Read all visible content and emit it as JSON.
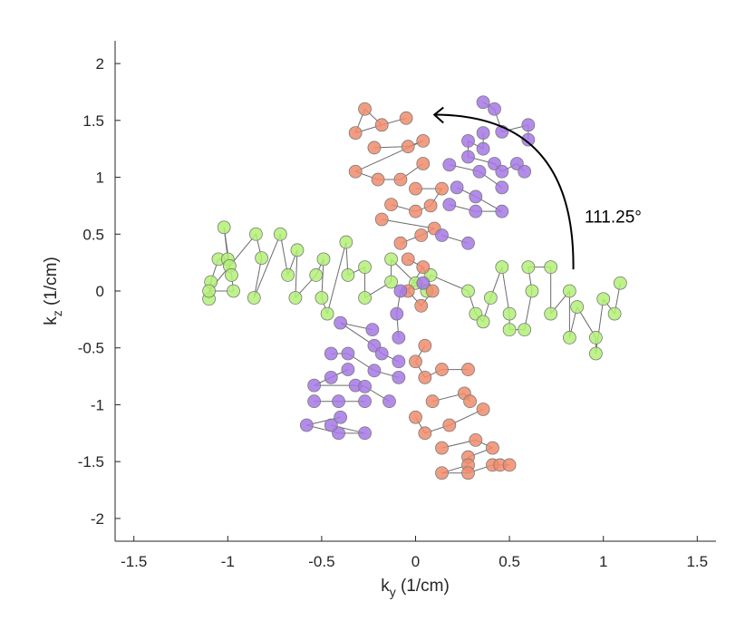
{
  "chart_data": {
    "type": "scatter",
    "xlabel": "k",
    "xlabel_sub": "y",
    "xlabel_unit": " (1/cm)",
    "ylabel": "k",
    "ylabel_sub": "z",
    "ylabel_unit": " (1/cm)",
    "xlim": [
      -1.6,
      1.6
    ],
    "ylim": [
      -2.2,
      2.2
    ],
    "xticks": [
      -1.5,
      -1,
      -0.5,
      0,
      0.5,
      1,
      1.5
    ],
    "xtick_labels": [
      "-1.5",
      "-1",
      "-0.5",
      "0",
      "0.5",
      "1",
      "1.5"
    ],
    "yticks": [
      2,
      1.5,
      1,
      0.5,
      0,
      -0.5,
      -1,
      -1.5,
      -2
    ],
    "ytick_labels": [
      "2",
      "1.5",
      "1",
      "0.5",
      "0",
      "-0.5",
      "-1",
      "-1.5",
      "-2"
    ],
    "grid": false,
    "annotation": {
      "text": "111.25°",
      "arrow_from": [
        0.84,
        0.19
      ],
      "arrow_to": [
        0.1,
        1.55
      ],
      "text_pos": [
        0.9,
        0.6
      ]
    },
    "series": [
      {
        "color": "#b3f075",
        "points": [
          [
            -1.1,
            -0.07
          ],
          [
            -1.09,
            0.08
          ],
          [
            -1.05,
            0.28
          ],
          [
            -1.0,
            0.28
          ],
          [
            -1.02,
            0.56
          ],
          [
            -0.99,
            0.22
          ],
          [
            -0.98,
            0.14
          ],
          [
            -0.97,
            0.0
          ],
          [
            -1.1,
            0.0
          ],
          [
            -0.85,
            0.5
          ],
          [
            -0.82,
            0.29
          ],
          [
            -0.86,
            -0.06
          ],
          [
            -0.72,
            0.5
          ],
          [
            -0.68,
            0.14
          ],
          [
            -0.63,
            0.36
          ],
          [
            -0.64,
            -0.06
          ],
          [
            -0.53,
            0.14
          ],
          [
            -0.49,
            0.28
          ],
          [
            -0.5,
            -0.06
          ],
          [
            -0.47,
            -0.2
          ],
          [
            -0.37,
            0.43
          ],
          [
            -0.36,
            0.14
          ],
          [
            -0.27,
            0.21
          ],
          [
            -0.27,
            -0.06
          ],
          [
            -0.13,
            0.08
          ],
          [
            -0.13,
            0.28
          ],
          [
            0.0,
            0.07
          ],
          [
            0.06,
            0.0
          ],
          [
            0.08,
            0.14
          ],
          [
            0.28,
            0.0
          ],
          [
            0.32,
            -0.2
          ],
          [
            0.36,
            -0.27
          ],
          [
            0.4,
            -0.06
          ],
          [
            0.46,
            0.21
          ],
          [
            0.5,
            -0.2
          ],
          [
            0.5,
            -0.34
          ],
          [
            0.58,
            -0.34
          ],
          [
            0.62,
            0.0
          ],
          [
            0.6,
            0.21
          ],
          [
            0.72,
            0.21
          ],
          [
            0.72,
            -0.2
          ],
          [
            0.82,
            0.0
          ],
          [
            0.82,
            -0.41
          ],
          [
            0.86,
            -0.14
          ],
          [
            0.96,
            -0.41
          ],
          [
            0.96,
            -0.55
          ],
          [
            1.0,
            -0.07
          ],
          [
            1.06,
            -0.2
          ],
          [
            1.09,
            0.07
          ]
        ],
        "links": [
          [
            0,
            1
          ],
          [
            1,
            2
          ],
          [
            2,
            3
          ],
          [
            3,
            4
          ],
          [
            4,
            5
          ],
          [
            5,
            6
          ],
          [
            6,
            7
          ],
          [
            7,
            8
          ],
          [
            8,
            9
          ],
          [
            9,
            10
          ],
          [
            10,
            11
          ],
          [
            11,
            12
          ],
          [
            12,
            13
          ],
          [
            13,
            14
          ],
          [
            14,
            15
          ],
          [
            15,
            16
          ],
          [
            16,
            17
          ],
          [
            17,
            18
          ],
          [
            18,
            19
          ],
          [
            19,
            20
          ],
          [
            20,
            21
          ],
          [
            21,
            22
          ],
          [
            22,
            23
          ],
          [
            23,
            24
          ],
          [
            24,
            25
          ],
          [
            25,
            26
          ],
          [
            26,
            27
          ],
          [
            27,
            28
          ],
          [
            28,
            29
          ],
          [
            29,
            30
          ],
          [
            30,
            31
          ],
          [
            31,
            32
          ],
          [
            32,
            33
          ],
          [
            33,
            34
          ],
          [
            34,
            35
          ],
          [
            35,
            36
          ],
          [
            36,
            37
          ],
          [
            37,
            38
          ],
          [
            38,
            39
          ],
          [
            39,
            40
          ],
          [
            40,
            41
          ],
          [
            41,
            42
          ],
          [
            42,
            43
          ],
          [
            43,
            44
          ],
          [
            44,
            45
          ],
          [
            45,
            46
          ],
          [
            46,
            47
          ],
          [
            47,
            48
          ]
        ]
      },
      {
        "color": "#f08c6c",
        "points": [
          [
            -0.27,
            1.6
          ],
          [
            -0.18,
            1.46
          ],
          [
            -0.05,
            1.52
          ],
          [
            -0.32,
            1.39
          ],
          [
            -0.22,
            1.26
          ],
          [
            -0.04,
            1.27
          ],
          [
            0.04,
            1.32
          ],
          [
            -0.32,
            1.05
          ],
          [
            -0.2,
            0.98
          ],
          [
            -0.08,
            0.98
          ],
          [
            0.04,
            1.12
          ],
          [
            0.0,
            0.9
          ],
          [
            0.14,
            0.9
          ],
          [
            -0.13,
            0.76
          ],
          [
            0.0,
            0.7
          ],
          [
            0.08,
            0.75
          ],
          [
            -0.18,
            0.63
          ],
          [
            0.1,
            0.55
          ],
          [
            -0.08,
            0.42
          ],
          [
            0.03,
            0.49
          ],
          [
            -0.04,
            0.28
          ],
          [
            0.04,
            0.21
          ],
          [
            -0.04,
            0.0
          ],
          [
            0.03,
            -0.13
          ],
          [
            0.09,
            0.0
          ],
          [
            0.05,
            -0.48
          ],
          [
            0.0,
            -0.62
          ],
          [
            0.05,
            -0.76
          ],
          [
            0.14,
            -0.69
          ],
          [
            0.28,
            -0.69
          ],
          [
            0.09,
            -0.97
          ],
          [
            0.26,
            -0.9
          ],
          [
            0.29,
            -0.97
          ],
          [
            0.0,
            -1.11
          ],
          [
            0.05,
            -1.25
          ],
          [
            0.18,
            -1.18
          ],
          [
            0.36,
            -1.04
          ],
          [
            0.14,
            -1.38
          ],
          [
            0.32,
            -1.31
          ],
          [
            0.41,
            -1.38
          ],
          [
            0.28,
            -1.46
          ],
          [
            0.28,
            -1.53
          ],
          [
            0.14,
            -1.6
          ],
          [
            0.28,
            -1.6
          ],
          [
            0.41,
            -1.53
          ],
          [
            0.45,
            -1.53
          ],
          [
            0.5,
            -1.53
          ]
        ],
        "links": [
          [
            0,
            1
          ],
          [
            1,
            2
          ],
          [
            0,
            3
          ],
          [
            3,
            1
          ],
          [
            4,
            5
          ],
          [
            5,
            6
          ],
          [
            7,
            8
          ],
          [
            8,
            9
          ],
          [
            9,
            10
          ],
          [
            7,
            6
          ],
          [
            11,
            12
          ],
          [
            13,
            14
          ],
          [
            14,
            15
          ],
          [
            15,
            12
          ],
          [
            16,
            17
          ],
          [
            18,
            19
          ],
          [
            19,
            17
          ],
          [
            20,
            21
          ],
          [
            21,
            22
          ],
          [
            22,
            23
          ],
          [
            23,
            24
          ],
          [
            24,
            21
          ],
          [
            25,
            26
          ],
          [
            26,
            27
          ],
          [
            27,
            28
          ],
          [
            28,
            29
          ],
          [
            30,
            31
          ],
          [
            31,
            32
          ],
          [
            33,
            34
          ],
          [
            34,
            35
          ],
          [
            35,
            36
          ],
          [
            37,
            38
          ],
          [
            38,
            39
          ],
          [
            40,
            41
          ],
          [
            41,
            42
          ],
          [
            42,
            43
          ],
          [
            43,
            44
          ],
          [
            44,
            45
          ],
          [
            45,
            46
          ],
          [
            40,
            39
          ]
        ]
      },
      {
        "color": "#a678e6",
        "points": [
          [
            0.36,
            1.66
          ],
          [
            0.42,
            1.6
          ],
          [
            0.46,
            1.4
          ],
          [
            0.6,
            1.46
          ],
          [
            0.6,
            1.33
          ],
          [
            0.36,
            1.39
          ],
          [
            0.36,
            1.25
          ],
          [
            0.28,
            1.32
          ],
          [
            0.28,
            1.18
          ],
          [
            0.42,
            1.12
          ],
          [
            0.46,
            1.05
          ],
          [
            0.54,
            1.12
          ],
          [
            0.58,
            1.05
          ],
          [
            0.18,
            1.11
          ],
          [
            0.34,
            1.05
          ],
          [
            0.46,
            0.91
          ],
          [
            0.22,
            0.91
          ],
          [
            0.32,
            0.83
          ],
          [
            0.46,
            0.7
          ],
          [
            0.32,
            0.7
          ],
          [
            0.18,
            0.76
          ],
          [
            0.14,
            0.49
          ],
          [
            0.28,
            0.42
          ],
          [
            0.04,
            0.07
          ],
          [
            -0.08,
            0.0
          ],
          [
            -0.1,
            -0.2
          ],
          [
            -0.09,
            -0.41
          ],
          [
            -0.23,
            -0.34
          ],
          [
            -0.4,
            -0.28
          ],
          [
            -0.22,
            -0.48
          ],
          [
            -0.18,
            -0.55
          ],
          [
            -0.09,
            -0.62
          ],
          [
            -0.45,
            -0.55
          ],
          [
            -0.36,
            -0.55
          ],
          [
            -0.22,
            -0.7
          ],
          [
            -0.09,
            -0.76
          ],
          [
            -0.45,
            -0.76
          ],
          [
            -0.36,
            -0.69
          ],
          [
            -0.54,
            -0.83
          ],
          [
            -0.32,
            -0.83
          ],
          [
            -0.27,
            -0.84
          ],
          [
            -0.14,
            -0.97
          ],
          [
            -0.54,
            -0.97
          ],
          [
            -0.41,
            -0.97
          ],
          [
            -0.27,
            -0.97
          ],
          [
            -0.4,
            -1.11
          ],
          [
            -0.58,
            -1.18
          ],
          [
            -0.41,
            -1.25
          ],
          [
            -0.27,
            -1.25
          ],
          [
            -0.45,
            -1.18
          ]
        ],
        "links": [
          [
            0,
            1
          ],
          [
            1,
            2
          ],
          [
            2,
            3
          ],
          [
            3,
            4
          ],
          [
            5,
            6
          ],
          [
            6,
            7
          ],
          [
            7,
            8
          ],
          [
            8,
            9
          ],
          [
            9,
            10
          ],
          [
            10,
            11
          ],
          [
            11,
            12
          ],
          [
            13,
            14
          ],
          [
            14,
            15
          ],
          [
            16,
            17
          ],
          [
            17,
            18
          ],
          [
            18,
            19
          ],
          [
            19,
            20
          ],
          [
            21,
            22
          ],
          [
            23,
            24
          ],
          [
            24,
            25
          ],
          [
            25,
            26
          ],
          [
            27,
            28
          ],
          [
            28,
            29
          ],
          [
            29,
            30
          ],
          [
            30,
            31
          ],
          [
            32,
            33
          ],
          [
            33,
            34
          ],
          [
            34,
            35
          ],
          [
            36,
            37
          ],
          [
            37,
            38
          ],
          [
            38,
            39
          ],
          [
            39,
            40
          ],
          [
            40,
            41
          ],
          [
            42,
            43
          ],
          [
            43,
            44
          ],
          [
            45,
            46
          ],
          [
            46,
            47
          ],
          [
            47,
            48
          ],
          [
            48,
            49
          ]
        ]
      }
    ]
  }
}
